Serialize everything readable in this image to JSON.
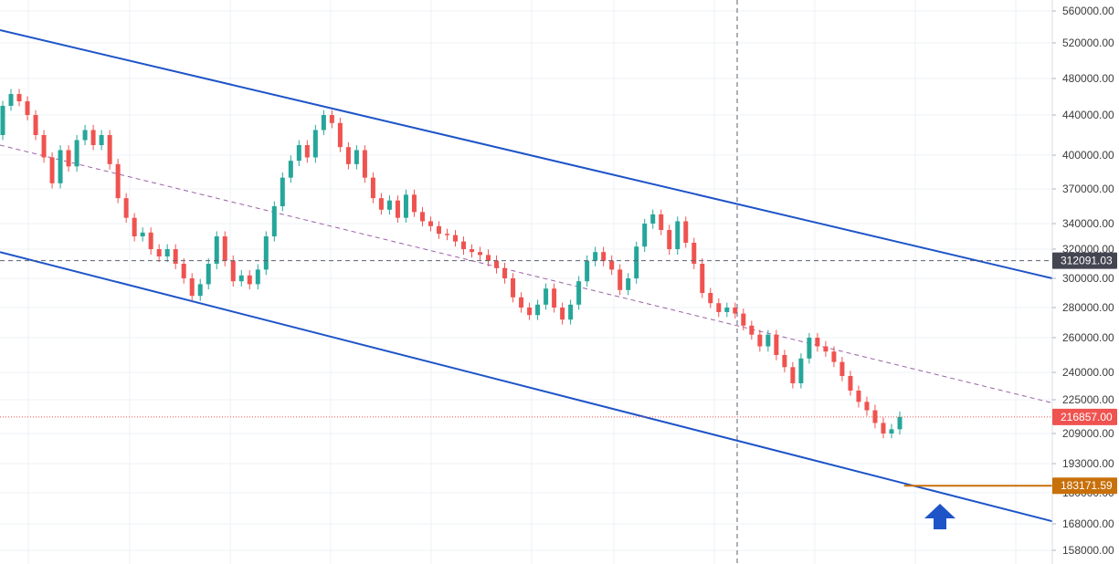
{
  "chart_data": {
    "type": "candlestick",
    "title": "",
    "xlabel": "",
    "ylabel": "",
    "price_axis": {
      "position": "right",
      "ticks": [
        {
          "value": 560000,
          "label": "560000.00"
        },
        {
          "value": 520000,
          "label": "520000.00"
        },
        {
          "value": 480000,
          "label": "480000.00"
        },
        {
          "value": 440000,
          "label": "440000.00"
        },
        {
          "value": 400000,
          "label": "400000.00"
        },
        {
          "value": 370000,
          "label": "370000.00"
        },
        {
          "value": 340000,
          "label": "340000.00"
        },
        {
          "value": 320000,
          "label": "320000.00"
        },
        {
          "value": 300000,
          "label": "300000.00"
        },
        {
          "value": 280000,
          "label": "280000.00"
        },
        {
          "value": 260000,
          "label": "260000.00"
        },
        {
          "value": 240000,
          "label": "240000.00"
        },
        {
          "value": 225000,
          "label": "225000.00"
        },
        {
          "value": 209000,
          "label": "209000.00"
        },
        {
          "value": 193000,
          "label": "193000.00"
        },
        {
          "value": 180000,
          "label": "180000.00"
        },
        {
          "value": 168000,
          "label": "168000.00"
        },
        {
          "value": 158000,
          "label": "158000.00"
        }
      ]
    },
    "price_tags": [
      {
        "id": "crosshair",
        "value": 312091.03,
        "label": "312091.03",
        "color": "#434651"
      },
      {
        "id": "last",
        "value": 216857.0,
        "label": "216857.00",
        "color": "#ef5350"
      },
      {
        "id": "target",
        "value": 183171.59,
        "label": "183171.59",
        "color": "#c8700a"
      }
    ],
    "series": [
      {
        "name": "",
        "description_note": "",
        "up_color": "#26a69a",
        "down_color": "#ef5350",
        "points": [
          [
            420000,
            450000
          ],
          [
            450000,
            463000
          ],
          [
            463000,
            455000
          ],
          [
            455000,
            440000
          ],
          [
            440000,
            420000
          ],
          [
            420000,
            398000
          ],
          [
            398000,
            375000
          ],
          [
            375000,
            405000
          ],
          [
            405000,
            390000
          ],
          [
            390000,
            415000
          ],
          [
            415000,
            425000
          ],
          [
            425000,
            410000
          ],
          [
            410000,
            420000
          ],
          [
            420000,
            392000
          ],
          [
            392000,
            362000
          ],
          [
            362000,
            345000
          ],
          [
            345000,
            330000
          ],
          [
            330000,
            333000
          ],
          [
            333000,
            320000
          ],
          [
            320000,
            315000
          ],
          [
            315000,
            320000
          ],
          [
            320000,
            310000
          ],
          [
            310000,
            300000
          ],
          [
            300000,
            288000
          ],
          [
            288000,
            296000
          ],
          [
            296000,
            310000
          ],
          [
            310000,
            330000
          ],
          [
            330000,
            312000
          ],
          [
            312000,
            298000
          ],
          [
            298000,
            302000
          ],
          [
            302000,
            296000
          ],
          [
            296000,
            306000
          ],
          [
            306000,
            330000
          ],
          [
            330000,
            355000
          ],
          [
            355000,
            380000
          ],
          [
            380000,
            395000
          ],
          [
            395000,
            410000
          ],
          [
            410000,
            398000
          ],
          [
            398000,
            425000
          ],
          [
            425000,
            440000
          ],
          [
            440000,
            432000
          ],
          [
            432000,
            408000
          ],
          [
            408000,
            392000
          ],
          [
            392000,
            405000
          ],
          [
            405000,
            380000
          ],
          [
            380000,
            362000
          ],
          [
            362000,
            352000
          ],
          [
            352000,
            360000
          ],
          [
            360000,
            345000
          ],
          [
            345000,
            365000
          ],
          [
            365000,
            350000
          ],
          [
            350000,
            342000
          ],
          [
            342000,
            338000
          ],
          [
            338000,
            332000
          ],
          [
            332000,
            331000
          ],
          [
            331000,
            326000
          ],
          [
            326000,
            320000
          ],
          [
            320000,
            318000
          ],
          [
            318000,
            316000
          ],
          [
            316000,
            312000
          ],
          [
            312000,
            307000
          ],
          [
            307000,
            300000
          ],
          [
            300000,
            287000
          ],
          [
            287000,
            280000
          ],
          [
            280000,
            275000
          ],
          [
            275000,
            282000
          ],
          [
            282000,
            293000
          ],
          [
            293000,
            280000
          ],
          [
            280000,
            272000
          ],
          [
            272000,
            282000
          ],
          [
            282000,
            298000
          ],
          [
            298000,
            312000
          ],
          [
            312000,
            318000
          ],
          [
            318000,
            312000
          ],
          [
            312000,
            306000
          ],
          [
            306000,
            292000
          ],
          [
            292000,
            300000
          ],
          [
            300000,
            322000
          ],
          [
            322000,
            340000
          ],
          [
            340000,
            348000
          ],
          [
            348000,
            335000
          ],
          [
            335000,
            320000
          ],
          [
            320000,
            342000
          ],
          [
            342000,
            325000
          ],
          [
            325000,
            310000
          ],
          [
            310000,
            290000
          ],
          [
            290000,
            283000
          ],
          [
            283000,
            277000
          ],
          [
            277000,
            280000
          ],
          [
            280000,
            276000
          ],
          [
            276000,
            268000
          ],
          [
            268000,
            262000
          ],
          [
            262000,
            255000
          ],
          [
            255000,
            262000
          ],
          [
            262000,
            250000
          ],
          [
            250000,
            243000
          ],
          [
            243000,
            234000
          ],
          [
            234000,
            248000
          ],
          [
            248000,
            260000
          ],
          [
            260000,
            255000
          ],
          [
            255000,
            252000
          ],
          [
            252000,
            246000
          ],
          [
            246000,
            238000
          ],
          [
            238000,
            230000
          ],
          [
            230000,
            224000
          ],
          [
            224000,
            220000
          ],
          [
            220000,
            214000
          ],
          [
            214000,
            209000
          ],
          [
            209000,
            211000
          ],
          [
            211000,
            216857
          ]
        ]
      }
    ],
    "trend_lines": [
      {
        "id": "channel-upper",
        "style": "solid",
        "color": "#1e54c8",
        "from": [
          0,
          536000
        ],
        "to": [
          1,
          300000
        ]
      },
      {
        "id": "channel-lower",
        "style": "solid",
        "color": "#1e54c8",
        "from": [
          0,
          318000
        ],
        "to": [
          1,
          169000
        ]
      },
      {
        "id": "channel-mid",
        "style": "dashed",
        "color": "#9c5fa8",
        "from": [
          0,
          410000
        ],
        "to": [
          1,
          223500
        ]
      },
      {
        "id": "target-ray",
        "style": "solid",
        "color": "#c8700a",
        "from": [
          0.84,
          183171.59
        ],
        "to": [
          1,
          183171.59
        ]
      }
    ],
    "crosshair": {
      "price": 312091.03
    },
    "grid": true,
    "annotations": [
      {
        "type": "arrow-up",
        "color": "#1e54c8"
      }
    ]
  }
}
